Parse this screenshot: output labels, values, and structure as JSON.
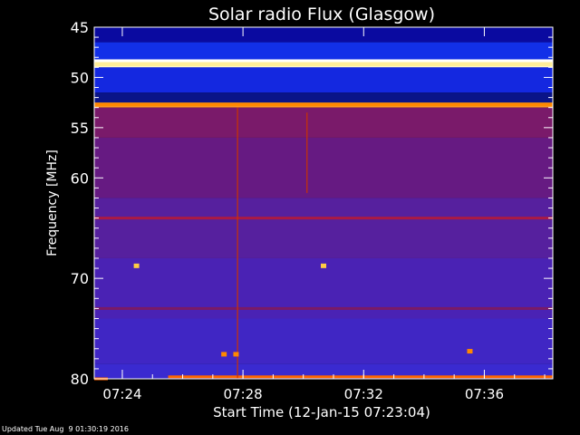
{
  "chart_data": {
    "type": "heatmap",
    "title": "Solar radio Flux (Glasgow)",
    "ylabel": "Frequency [MHz]",
    "xlabel": "Start Time (12-Jan-15 07:23:04)",
    "x_unit": "minutes after 07:23:04",
    "xlim": [
      0,
      15.2
    ],
    "ylim": [
      45,
      80
    ],
    "x_ticks": [
      {
        "value": 0.93,
        "label": "07:24"
      },
      {
        "value": 4.93,
        "label": "07:28"
      },
      {
        "value": 8.93,
        "label": "07:32"
      },
      {
        "value": 12.93,
        "label": "07:36"
      }
    ],
    "y_ticks": [
      {
        "value": 45,
        "label": "45"
      },
      {
        "value": 50,
        "label": "50"
      },
      {
        "value": 55,
        "label": "55"
      },
      {
        "value": 60,
        "label": "60"
      },
      {
        "value": 70,
        "label": "70"
      },
      {
        "value": 80,
        "label": "80"
      }
    ],
    "y_minor_ticks": [
      46,
      47,
      48,
      49,
      51,
      52,
      53,
      54,
      56,
      57,
      58,
      59,
      61,
      62,
      63,
      64,
      65,
      66,
      67,
      68,
      69,
      71,
      72,
      73,
      74,
      75,
      76,
      77,
      78,
      79
    ],
    "colors": {
      "background": "#000000",
      "high_band": "#0b1bd8",
      "mid_band": "#661a8a",
      "low_band": "#4a22b8",
      "emission": "#ffdd66",
      "axis": "#ffffff"
    },
    "bands": [
      {
        "f1": 45.0,
        "f2": 46.5,
        "color": "#0a0aa0"
      },
      {
        "f1": 46.5,
        "f2": 48.2,
        "color": "#1230e8"
      },
      {
        "f1": 48.2,
        "f2": 49.0,
        "color": "#ffffff"
      },
      {
        "f1": 49.0,
        "f2": 51.5,
        "color": "#1428e0"
      },
      {
        "f1": 51.5,
        "f2": 52.5,
        "color": "#0a1488"
      },
      {
        "f1": 52.5,
        "f2": 53.0,
        "color": "#ff9922"
      },
      {
        "f1": 53.0,
        "f2": 56.0,
        "color": "#7a1a6a"
      },
      {
        "f1": 56.0,
        "f2": 62.0,
        "color": "#661a82"
      },
      {
        "f1": 62.0,
        "f2": 68.0,
        "color": "#56209e"
      },
      {
        "f1": 68.0,
        "f2": 74.0,
        "color": "#4a22b4"
      },
      {
        "f1": 74.0,
        "f2": 78.5,
        "color": "#4026c4"
      },
      {
        "f1": 78.5,
        "f2": 80.0,
        "color": "#3a2ad0"
      }
    ],
    "emission_lines": [
      {
        "freq": 48.7,
        "t1": 0,
        "t2": 15.2,
        "color": "#ffee99"
      },
      {
        "freq": 52.7,
        "t1": 0,
        "t2": 15.2,
        "color": "#ff8800"
      },
      {
        "freq": 64.0,
        "t1": 0,
        "t2": 15.2,
        "color": "#aa1a44"
      },
      {
        "freq": 73.0,
        "t1": 0,
        "t2": 15.2,
        "color": "#7a1a66"
      },
      {
        "freq": 79.8,
        "t1": 2.45,
        "t2": 15.2,
        "color": "#ff6600"
      },
      {
        "freq": 80.0,
        "t1": 0,
        "t2": 0.45,
        "color": "#ff6600"
      }
    ],
    "bursts": [
      {
        "time": 4.75,
        "f1": 53.0,
        "f2": 80.0,
        "color": "#cc3300"
      },
      {
        "time": 7.05,
        "f1": 53.5,
        "f2": 61.5,
        "color": "#cc3300"
      }
    ],
    "spots": [
      {
        "time": 4.7,
        "freq": 77.6,
        "color": "#ff8800"
      },
      {
        "time": 4.3,
        "freq": 77.6,
        "color": "#ff8800"
      },
      {
        "time": 12.45,
        "freq": 77.3,
        "color": "#ff8800"
      },
      {
        "time": 1.4,
        "freq": 68.8,
        "color": "#ffcc44"
      },
      {
        "time": 7.6,
        "freq": 68.8,
        "color": "#ffcc44"
      }
    ]
  },
  "footer": "Updated Tue Aug  9 01:30:19 2016"
}
